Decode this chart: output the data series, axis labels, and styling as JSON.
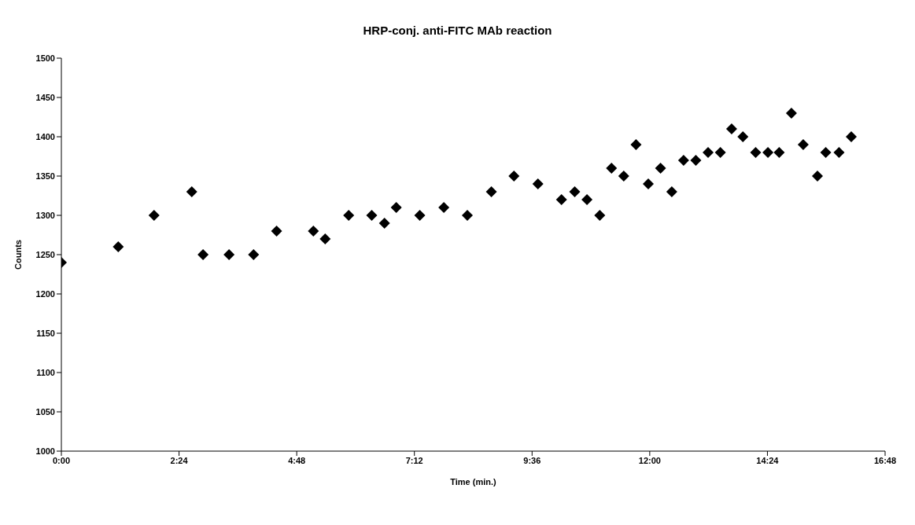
{
  "chart_data": {
    "type": "scatter",
    "title": "HRP-conj. anti-FITC MAb reaction",
    "xlabel": "Time (min.)",
    "ylabel": "Counts",
    "x": [
      0,
      1.16,
      1.89,
      2.66,
      2.89,
      3.42,
      3.92,
      4.39,
      5.14,
      5.38,
      5.86,
      6.33,
      6.59,
      6.83,
      7.31,
      7.8,
      8.28,
      8.77,
      9.23,
      9.72,
      10.2,
      10.47,
      10.72,
      10.98,
      11.22,
      11.47,
      11.72,
      11.97,
      12.22,
      12.45,
      12.69,
      12.94,
      13.19,
      13.44,
      13.67,
      13.9,
      14.16,
      14.41,
      14.64,
      14.89,
      15.13,
      15.42,
      15.59,
      15.86,
      16.11
    ],
    "values": [
      1240,
      1260,
      1300,
      1330,
      1250,
      1250,
      1250,
      1280,
      1280,
      1270,
      1300,
      1300,
      1290,
      1310,
      1300,
      1310,
      1300,
      1330,
      1350,
      1340,
      1320,
      1330,
      1320,
      1300,
      1360,
      1350,
      1390,
      1340,
      1360,
      1330,
      1370,
      1370,
      1380,
      1380,
      1410,
      1400,
      1380,
      1380,
      1380,
      1430,
      1390,
      1350,
      1380,
      1380,
      1400
    ],
    "color": "#000000",
    "marker": "diamond",
    "grid": false,
    "legend": false,
    "xlim": [
      0,
      16.8
    ],
    "xticks": [
      {
        "value": 0,
        "label": "0:00"
      },
      {
        "value": 2.4,
        "label": "2:24"
      },
      {
        "value": 4.8,
        "label": "4:48"
      },
      {
        "value": 7.2,
        "label": "7:12"
      },
      {
        "value": 9.6,
        "label": "9:36"
      },
      {
        "value": 12,
        "label": "12:00"
      },
      {
        "value": 14.4,
        "label": "14:24"
      },
      {
        "value": 16.8,
        "label": "16:48"
      }
    ],
    "ylim": [
      1000,
      1500
    ],
    "yticks": [
      1000,
      1050,
      1100,
      1150,
      1200,
      1250,
      1300,
      1350,
      1400,
      1450,
      1500
    ]
  }
}
